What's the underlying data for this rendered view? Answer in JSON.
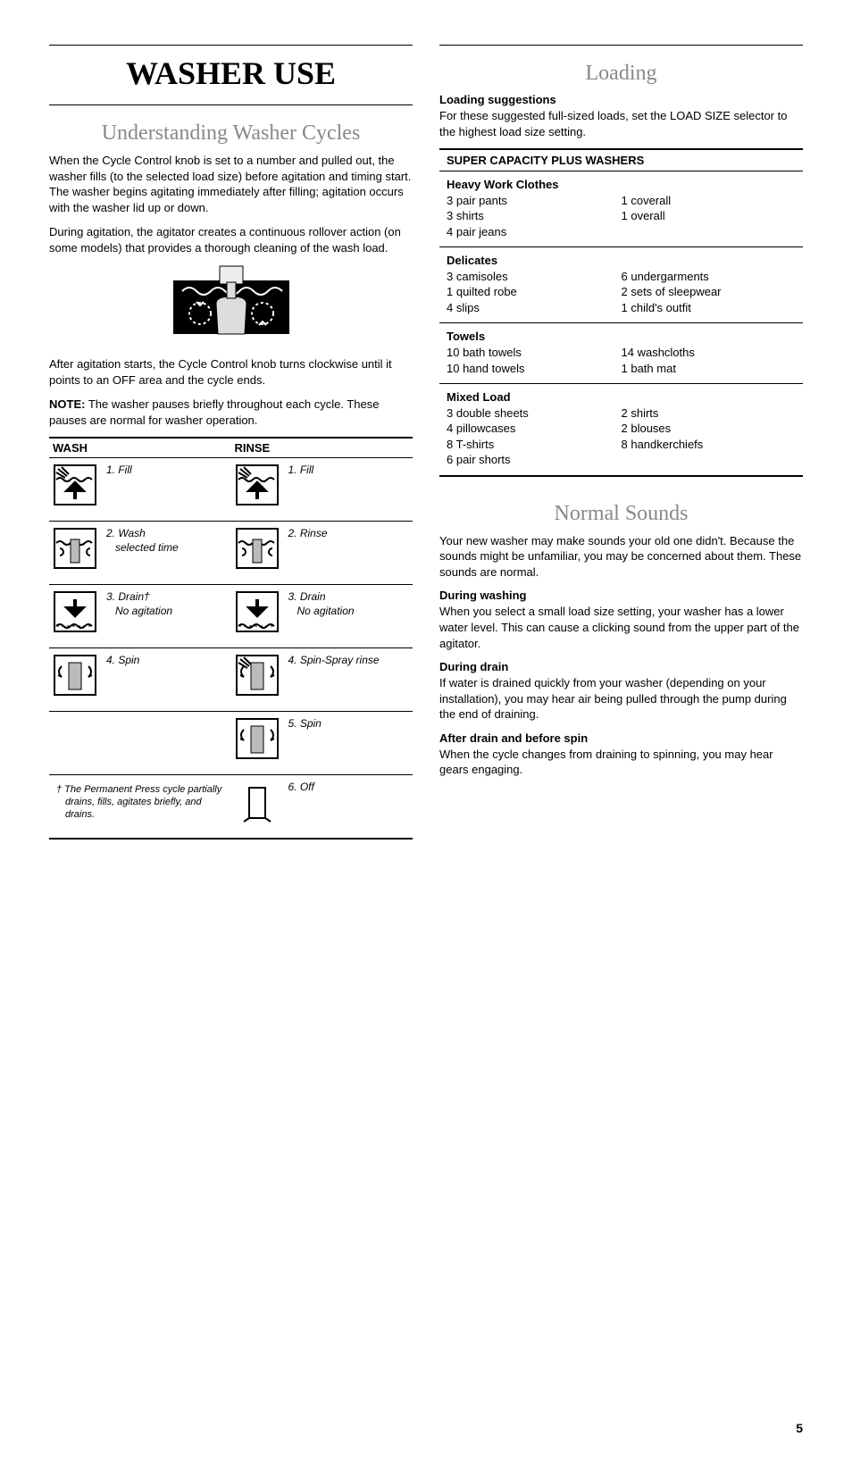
{
  "page_number": "5",
  "left": {
    "main_title": "WASHER USE",
    "section_title": "Understanding Washer Cycles",
    "para1": "When the Cycle Control knob is set to a number and pulled out, the washer fills (to the selected load size) before agitation and timing start. The washer begins agitating immediately after filling; agitation occurs with the washer lid up or down.",
    "para2": "During agitation, the agitator creates a continuous rollover action (on some models) that provides a thorough cleaning of the wash load.",
    "para3": "After agitation starts, the Cycle Control knob turns clockwise until it points to an OFF area and the cycle ends.",
    "note_label": "NOTE:",
    "note_body": " The washer pauses briefly throughout each cycle. These pauses are normal for washer operation.",
    "wash_header": "WASH",
    "rinse_header": "RINSE",
    "wash_steps": [
      {
        "line1": "1. Fill",
        "line2": ""
      },
      {
        "line1": "2. Wash",
        "line2": "selected time"
      },
      {
        "line1": "3. Drain†",
        "line2": "No agitation"
      },
      {
        "line1": "4. Spin",
        "line2": ""
      }
    ],
    "rinse_steps": [
      {
        "line1": "1. Fill",
        "line2": ""
      },
      {
        "line1": "2. Rinse",
        "line2": ""
      },
      {
        "line1": "3. Drain",
        "line2": "No agitation"
      },
      {
        "line1": "4. Spin-Spray rinse",
        "line2": ""
      },
      {
        "line1": "5. Spin",
        "line2": ""
      },
      {
        "line1": "6. Off",
        "line2": ""
      }
    ],
    "footnote": "†  The Permanent Press cycle partially drains, fills, agitates briefly, and drains."
  },
  "right": {
    "loading_title": "Loading",
    "loading_sub": "Loading suggestions",
    "loading_text": "For these suggested full-sized loads, set the LOAD SIZE selector to the highest load size setting.",
    "table_header": "SUPER CAPACITY PLUS WASHERS",
    "groups": [
      {
        "title": "Heavy Work Clothes",
        "left": [
          "3 pair pants",
          "3 shirts",
          "4 pair jeans"
        ],
        "right": [
          "1 coverall",
          "1 overall"
        ]
      },
      {
        "title": "Delicates",
        "left": [
          "3 camisoles",
          "1 quilted robe",
          "4 slips"
        ],
        "right": [
          "6 undergarments",
          "2 sets of sleepwear",
          "1 child's outfit"
        ]
      },
      {
        "title": "Towels",
        "left": [
          "10 bath towels",
          "10 hand towels"
        ],
        "right": [
          "14 washcloths",
          " 1 bath mat"
        ]
      },
      {
        "title": "Mixed Load",
        "left": [
          "3 double sheets",
          "4 pillowcases",
          "8 T-shirts",
          "6 pair shorts"
        ],
        "right": [
          "2 shirts",
          "2 blouses",
          "8 handkerchiefs"
        ]
      }
    ],
    "sounds_title": "Normal Sounds",
    "sounds_intro": "Your new washer may make sounds your old one didn't. Because the sounds might be unfamiliar, you may be concerned about them. These sounds are normal.",
    "sounds": [
      {
        "h": "During washing",
        "t": "When you select a small load size setting, your washer has a lower water level. This can cause a clicking sound from the upper part of the agitator."
      },
      {
        "h": "During drain",
        "t": "If water is drained quickly from your washer (depending on your installation), you may hear air being pulled through the pump during the end of draining."
      },
      {
        "h": "After drain and before spin",
        "t": "When the cycle changes from draining to spinning, you may hear gears engaging."
      }
    ]
  },
  "icons": {
    "fill": "fill",
    "agitate": "agitate",
    "drain": "drain",
    "spin": "spin",
    "spinspray": "spinspray",
    "off": "off"
  }
}
